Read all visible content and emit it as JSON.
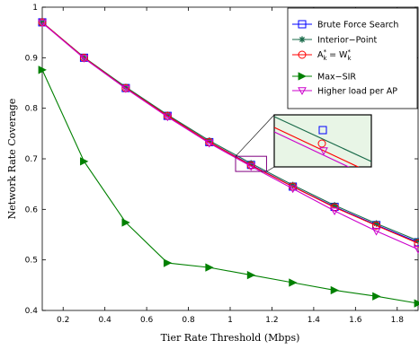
{
  "chart_data": {
    "type": "line",
    "title": "",
    "xlabel": "Tier Rate Threshold (Mbps)",
    "ylabel": "Network Rate Coverage",
    "xlim": [
      0.1,
      1.9
    ],
    "ylim": [
      0.4,
      1.0
    ],
    "xticks": [
      "0.2",
      "0.4",
      "0.6",
      "0.8",
      "1",
      "1.2",
      "1.4",
      "1.6",
      "1.8"
    ],
    "yticks": [
      "0.4",
      "0.5",
      "0.6",
      "0.7",
      "0.8",
      "0.9",
      "1"
    ],
    "xtick_values": [
      0.2,
      0.4,
      0.6,
      0.8,
      1.0,
      1.2,
      1.4,
      1.6,
      1.8
    ],
    "ytick_values": [
      0.4,
      0.5,
      0.6,
      0.7,
      0.8,
      0.9,
      1.0
    ],
    "grid": false,
    "legend_position": "top-right",
    "x": [
      0.1,
      0.3,
      0.5,
      0.7,
      0.9,
      1.1,
      1.3,
      1.5,
      1.7,
      1.9
    ],
    "series": [
      {
        "name": "Brute Force Search",
        "color": "#0000ff",
        "marker": "square",
        "values": [
          0.97,
          0.9,
          0.84,
          0.785,
          0.733,
          0.688,
          0.645,
          0.605,
          0.569,
          0.535
        ]
      },
      {
        "name": "Interior−Point",
        "color": "#1a6b4a",
        "marker": "star",
        "values": [
          0.97,
          0.901,
          0.842,
          0.787,
          0.736,
          0.691,
          0.648,
          0.608,
          0.572,
          0.538
        ]
      },
      {
        "name": "A = W",
        "color": "#ff0000",
        "marker": "circle",
        "values": [
          0.97,
          0.9,
          0.84,
          0.785,
          0.733,
          0.687,
          0.645,
          0.604,
          0.568,
          0.533
        ]
      },
      {
        "name": "Max−SIR",
        "color": "#008000",
        "marker": "triangle-right",
        "values": [
          0.876,
          0.695,
          0.574,
          0.494,
          0.485,
          0.47,
          0.455,
          0.44,
          0.428,
          0.414
        ]
      },
      {
        "name": "Higher load per AP",
        "color": "#cc00cc",
        "marker": "triangle-down",
        "values": [
          0.969,
          0.899,
          0.839,
          0.783,
          0.731,
          0.685,
          0.641,
          0.597,
          0.557,
          0.521
        ]
      }
    ],
    "legend_sub": {
      "A": "k",
      "W": "k",
      "star": "*"
    },
    "inset": {
      "x_range": [
        1.0,
        1.2
      ],
      "y_range": [
        0.675,
        0.705
      ]
    }
  }
}
